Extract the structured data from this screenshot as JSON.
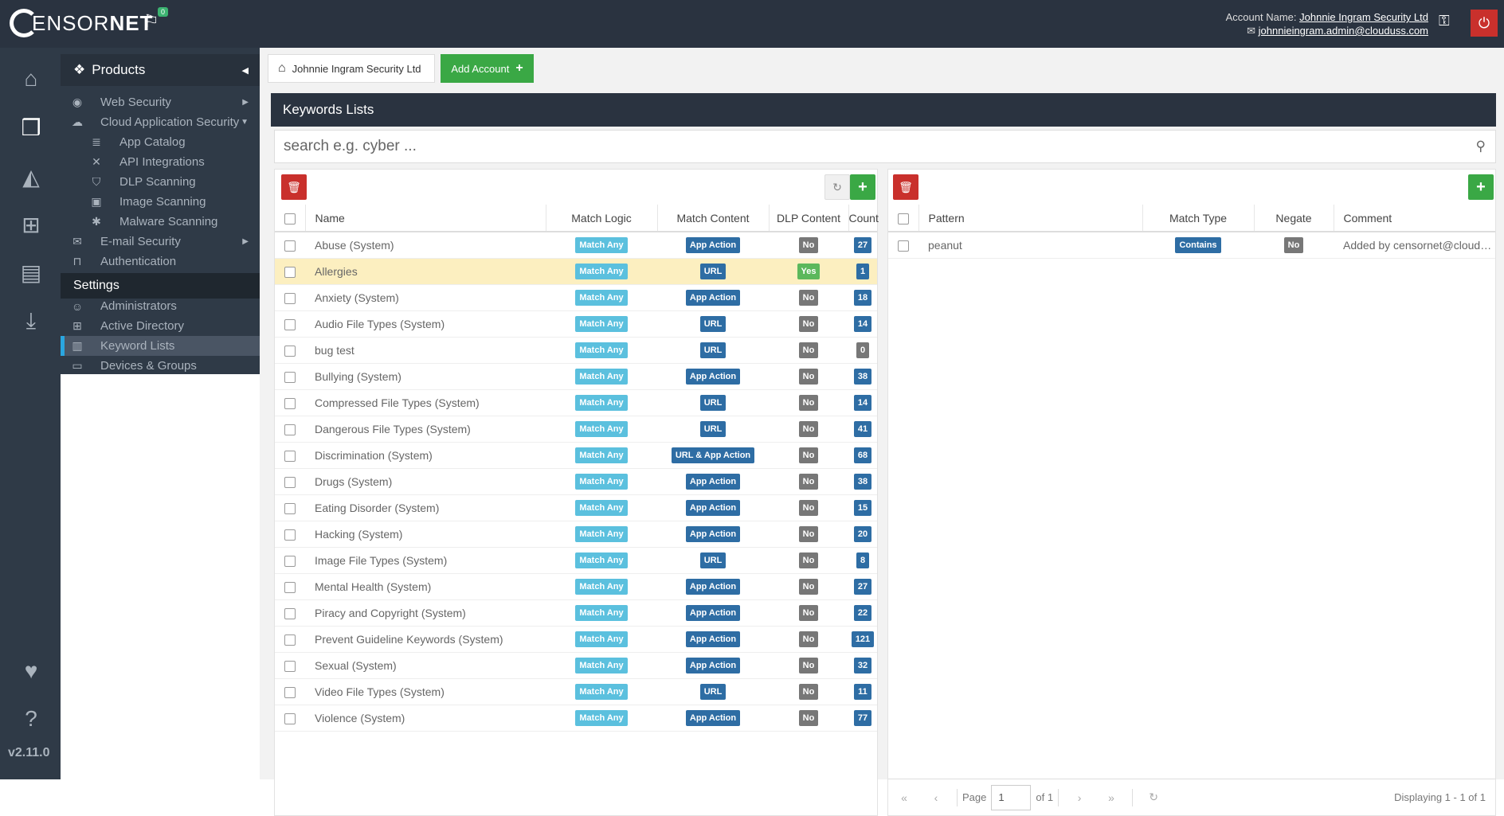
{
  "brand": {
    "logo_text_a": "ENSOR",
    "logo_text_b": "NET",
    "notifications": "0"
  },
  "account": {
    "name_label": "Account Name:",
    "name": "Johnnie Ingram Security Ltd",
    "email": "johnnieingram.admin@clouduss.com"
  },
  "version": "v2.11.0",
  "nav": {
    "products_label": "Products",
    "items": [
      {
        "label": "Web Security",
        "icon": "globe-icon"
      },
      {
        "label": "Cloud Application Security",
        "icon": "cloud-icon"
      },
      {
        "label": "App Catalog",
        "icon": "database-icon"
      },
      {
        "label": "API Integrations",
        "icon": "plug-icon"
      },
      {
        "label": "DLP Scanning",
        "icon": "shield-icon"
      },
      {
        "label": "Image Scanning",
        "icon": "image-icon"
      },
      {
        "label": "Malware Scanning",
        "icon": "bug-icon"
      },
      {
        "label": "E-mail Security",
        "icon": "envelope-icon"
      },
      {
        "label": "Authentication",
        "icon": "unlock-icon"
      }
    ],
    "settings_label": "Settings",
    "settings_items": [
      {
        "label": "Administrators",
        "icon": "user-circle-icon"
      },
      {
        "label": "Active Directory",
        "icon": "windows-icon"
      },
      {
        "label": "Keyword Lists",
        "icon": "book-icon"
      },
      {
        "label": "Devices & Groups",
        "icon": "monitor-icon"
      }
    ]
  },
  "tabs": {
    "home": "Johnnie Ingram Security Ltd",
    "add": "Add Account"
  },
  "page_title": "Keywords Lists",
  "search": {
    "placeholder": "search e.g. cyber ..."
  },
  "lists": {
    "headers": {
      "name": "Name",
      "logic": "Match Logic",
      "content": "Match Content",
      "dlp": "DLP Content",
      "count": "Count"
    },
    "rows": [
      {
        "name": "Abuse (System)",
        "logic": "Match Any",
        "content": "App Action",
        "dlp": "No",
        "count": "27"
      },
      {
        "name": "Allergies",
        "logic": "Match Any",
        "content": "URL",
        "dlp": "Yes",
        "count": "1",
        "highlight": true
      },
      {
        "name": "Anxiety (System)",
        "logic": "Match Any",
        "content": "App Action",
        "dlp": "No",
        "count": "18"
      },
      {
        "name": "Audio File Types (System)",
        "logic": "Match Any",
        "content": "URL",
        "dlp": "No",
        "count": "14"
      },
      {
        "name": "bug test",
        "logic": "Match Any",
        "content": "URL",
        "dlp": "No",
        "count": "0"
      },
      {
        "name": "Bullying (System)",
        "logic": "Match Any",
        "content": "App Action",
        "dlp": "No",
        "count": "38"
      },
      {
        "name": "Compressed File Types (System)",
        "logic": "Match Any",
        "content": "URL",
        "dlp": "No",
        "count": "14"
      },
      {
        "name": "Dangerous File Types (System)",
        "logic": "Match Any",
        "content": "URL",
        "dlp": "No",
        "count": "41"
      },
      {
        "name": "Discrimination (System)",
        "logic": "Match Any",
        "content": "URL & App Action",
        "dlp": "No",
        "count": "68"
      },
      {
        "name": "Drugs (System)",
        "logic": "Match Any",
        "content": "App Action",
        "dlp": "No",
        "count": "38"
      },
      {
        "name": "Eating Disorder (System)",
        "logic": "Match Any",
        "content": "App Action",
        "dlp": "No",
        "count": "15"
      },
      {
        "name": "Hacking (System)",
        "logic": "Match Any",
        "content": "App Action",
        "dlp": "No",
        "count": "20"
      },
      {
        "name": "Image File Types (System)",
        "logic": "Match Any",
        "content": "URL",
        "dlp": "No",
        "count": "8"
      },
      {
        "name": "Mental Health (System)",
        "logic": "Match Any",
        "content": "App Action",
        "dlp": "No",
        "count": "27"
      },
      {
        "name": "Piracy and Copyright (System)",
        "logic": "Match Any",
        "content": "App Action",
        "dlp": "No",
        "count": "22"
      },
      {
        "name": "Prevent Guideline Keywords (System)",
        "logic": "Match Any",
        "content": "App Action",
        "dlp": "No",
        "count": "121"
      },
      {
        "name": "Sexual (System)",
        "logic": "Match Any",
        "content": "App Action",
        "dlp": "No",
        "count": "32"
      },
      {
        "name": "Video File Types (System)",
        "logic": "Match Any",
        "content": "URL",
        "dlp": "No",
        "count": "11"
      },
      {
        "name": "Violence (System)",
        "logic": "Match Any",
        "content": "App Action",
        "dlp": "No",
        "count": "77"
      }
    ]
  },
  "patterns": {
    "headers": {
      "pattern": "Pattern",
      "type": "Match Type",
      "negate": "Negate",
      "comment": "Comment"
    },
    "rows": [
      {
        "pattern": "peanut",
        "type": "Contains",
        "negate": "No",
        "comment": "Added by censornet@clouduss.co..."
      }
    ]
  },
  "pager": {
    "page_label": "Page",
    "page": "1",
    "of": "of 1",
    "display": "Displaying 1 - 1 of 1"
  },
  "colors": {
    "topbar": "#2a3340",
    "accent_green": "#3aa845",
    "danger": "#c9302c",
    "label_blue": "#5bc0de",
    "label_darkblue": "#2e6da4",
    "highlight_row": "#fcefc0"
  }
}
